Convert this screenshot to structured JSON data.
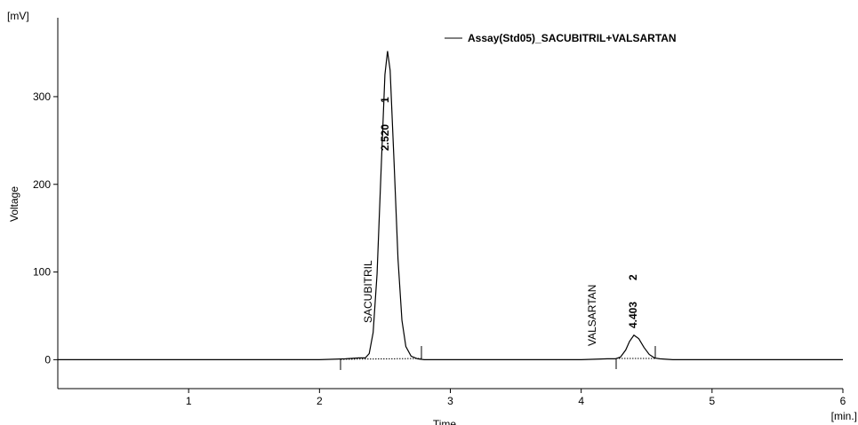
{
  "chart_data": {
    "type": "line",
    "y_unit": "[mV]",
    "y_label": "Voltage",
    "x_label": "Time",
    "x_unit": "[min.]",
    "x": [
      0,
      1,
      1.5,
      2.0,
      2.2,
      2.3,
      2.35,
      2.38,
      2.41,
      2.44,
      2.47,
      2.5,
      2.52,
      2.54,
      2.57,
      2.6,
      2.63,
      2.66,
      2.7,
      2.75,
      2.8,
      3.0,
      3.5,
      4.0,
      4.2,
      4.26,
      4.3,
      4.34,
      4.37,
      4.403,
      4.44,
      4.48,
      4.52,
      4.56,
      4.6,
      4.7,
      5.0,
      5.5,
      6.0
    ],
    "series": [
      {
        "name": "Assay(Std05)_SACUBITRIL+VALSARTAN",
        "color": "#000000",
        "values": [
          0,
          0,
          0,
          0,
          1,
          2,
          2,
          7,
          31,
          98,
          213,
          325,
          352,
          330,
          225,
          115,
          45,
          15,
          4,
          1,
          0,
          0,
          0,
          0,
          1,
          1,
          3,
          11,
          21,
          28,
          24,
          14,
          6,
          2,
          1,
          0,
          0,
          0,
          0
        ]
      }
    ],
    "xlim": [
      0,
      6
    ],
    "xticks": [
      1,
      2,
      3,
      4,
      5,
      6
    ],
    "ylim": [
      -33,
      390
    ],
    "yticks": [
      0,
      100,
      200,
      300
    ],
    "annotations": [
      {
        "name": "SACUBITRIL",
        "time": "2.520",
        "peak": "1"
      },
      {
        "name": "VALSARTAN",
        "time": "4.403",
        "peak": "2"
      }
    ],
    "grid": false,
    "legend": "top-right"
  }
}
